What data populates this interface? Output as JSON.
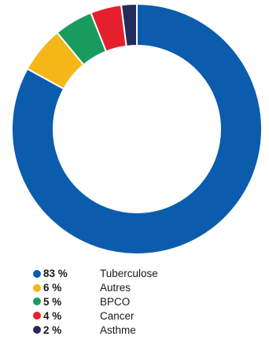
{
  "chart_data": {
    "type": "pie",
    "title": "",
    "categories": [
      "Tuberculose",
      "Autres",
      "BPCO",
      "Cancer",
      "Asthme"
    ],
    "values": [
      83,
      6,
      5,
      4,
      2
    ],
    "value_labels": [
      "83 %",
      "6 %",
      "5 %",
      "4 %",
      "2 %"
    ],
    "colors": [
      "#0b5cad",
      "#f5b618",
      "#1a9b5e",
      "#e4202d",
      "#242a5c"
    ],
    "donut": true,
    "legend_position": "bottom-left"
  },
  "legend": {
    "items": [
      {
        "pct": "83 %",
        "label": "Tuberculose"
      },
      {
        "pct": "6 %",
        "label": "Autres"
      },
      {
        "pct": "5 %",
        "label": "BPCO"
      },
      {
        "pct": "4 %",
        "label": "Cancer"
      },
      {
        "pct": "2 %",
        "label": "Asthme"
      }
    ]
  }
}
